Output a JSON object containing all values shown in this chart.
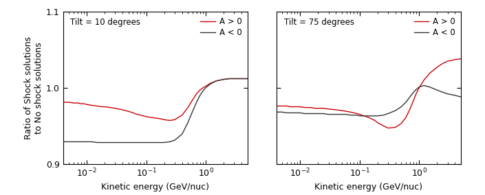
{
  "xlim": [
    0.004,
    5.0
  ],
  "ylim": [
    0.9,
    1.1
  ],
  "yticks": [
    0.9,
    1.0,
    1.1
  ],
  "xlabel": "Kinetic energy (GeV/nuc)",
  "ylabel": "Ratio of Shock solutions\nto No shock solutions",
  "color_pos": "#cc0000",
  "color_neg": "#333333",
  "legend_pos": "A > 0",
  "legend_neg": "A < 0",
  "panel1_title": "Tilt = 10 degrees",
  "panel2_title": "Tilt = 75 degrees",
  "panel1_Apos_x": [
    0.004,
    0.005,
    0.006,
    0.007,
    0.008,
    0.009,
    0.01,
    0.012,
    0.015,
    0.018,
    0.02,
    0.025,
    0.03,
    0.04,
    0.05,
    0.06,
    0.07,
    0.08,
    0.09,
    0.1,
    0.12,
    0.15,
    0.18,
    0.2,
    0.25,
    0.3,
    0.4,
    0.5,
    0.6,
    0.7,
    0.8,
    0.9,
    1.0,
    1.2,
    1.5,
    2.0,
    2.5,
    3.0,
    4.0,
    5.0
  ],
  "panel1_Apos_y": [
    0.981,
    0.981,
    0.98,
    0.98,
    0.979,
    0.979,
    0.978,
    0.977,
    0.976,
    0.975,
    0.975,
    0.974,
    0.973,
    0.971,
    0.969,
    0.967,
    0.965,
    0.964,
    0.963,
    0.962,
    0.961,
    0.96,
    0.959,
    0.958,
    0.957,
    0.958,
    0.964,
    0.974,
    0.984,
    0.992,
    0.997,
    1.0,
    1.002,
    1.006,
    1.009,
    1.011,
    1.012,
    1.012,
    1.012,
    1.012
  ],
  "panel1_Aneg_x": [
    0.004,
    0.005,
    0.006,
    0.007,
    0.008,
    0.009,
    0.01,
    0.012,
    0.015,
    0.018,
    0.02,
    0.025,
    0.03,
    0.04,
    0.05,
    0.06,
    0.07,
    0.08,
    0.09,
    0.1,
    0.12,
    0.15,
    0.18,
    0.2,
    0.25,
    0.3,
    0.4,
    0.5,
    0.6,
    0.7,
    0.8,
    0.9,
    1.0,
    1.2,
    1.5,
    2.0,
    2.5,
    3.0,
    4.0,
    5.0
  ],
  "panel1_Aneg_y": [
    0.929,
    0.929,
    0.929,
    0.929,
    0.929,
    0.929,
    0.929,
    0.929,
    0.928,
    0.928,
    0.928,
    0.928,
    0.928,
    0.928,
    0.928,
    0.928,
    0.928,
    0.928,
    0.928,
    0.928,
    0.928,
    0.928,
    0.928,
    0.928,
    0.929,
    0.931,
    0.939,
    0.954,
    0.969,
    0.981,
    0.99,
    0.996,
    1.0,
    1.005,
    1.009,
    1.011,
    1.012,
    1.012,
    1.012,
    1.012
  ],
  "panel2_Apos_x": [
    0.004,
    0.005,
    0.006,
    0.007,
    0.008,
    0.009,
    0.01,
    0.012,
    0.015,
    0.018,
    0.02,
    0.025,
    0.03,
    0.04,
    0.05,
    0.06,
    0.07,
    0.08,
    0.09,
    0.1,
    0.12,
    0.15,
    0.18,
    0.2,
    0.25,
    0.3,
    0.4,
    0.5,
    0.6,
    0.7,
    0.8,
    0.9,
    1.0,
    1.2,
    1.5,
    2.0,
    2.5,
    3.0,
    4.0,
    5.0
  ],
  "panel2_Apos_y": [
    0.976,
    0.976,
    0.976,
    0.975,
    0.975,
    0.975,
    0.975,
    0.974,
    0.974,
    0.973,
    0.973,
    0.973,
    0.972,
    0.971,
    0.97,
    0.969,
    0.968,
    0.967,
    0.966,
    0.965,
    0.963,
    0.96,
    0.957,
    0.954,
    0.95,
    0.947,
    0.948,
    0.953,
    0.961,
    0.972,
    0.983,
    0.993,
    1.0,
    1.01,
    1.019,
    1.027,
    1.032,
    1.035,
    1.037,
    1.038
  ],
  "panel2_Aneg_x": [
    0.004,
    0.005,
    0.006,
    0.007,
    0.008,
    0.009,
    0.01,
    0.012,
    0.015,
    0.018,
    0.02,
    0.025,
    0.03,
    0.04,
    0.05,
    0.06,
    0.07,
    0.08,
    0.09,
    0.1,
    0.12,
    0.15,
    0.18,
    0.2,
    0.25,
    0.3,
    0.4,
    0.5,
    0.6,
    0.7,
    0.8,
    0.9,
    1.0,
    1.2,
    1.5,
    2.0,
    2.5,
    3.0,
    4.0,
    5.0
  ],
  "panel2_Aneg_y": [
    0.968,
    0.968,
    0.967,
    0.967,
    0.967,
    0.967,
    0.967,
    0.966,
    0.966,
    0.966,
    0.966,
    0.966,
    0.965,
    0.965,
    0.965,
    0.965,
    0.964,
    0.964,
    0.964,
    0.963,
    0.963,
    0.963,
    0.963,
    0.963,
    0.964,
    0.966,
    0.97,
    0.975,
    0.981,
    0.988,
    0.994,
    0.998,
    1.001,
    1.003,
    1.001,
    0.997,
    0.994,
    0.992,
    0.99,
    0.988
  ],
  "figsize": [
    7.05,
    2.84
  ],
  "dpi": 100
}
